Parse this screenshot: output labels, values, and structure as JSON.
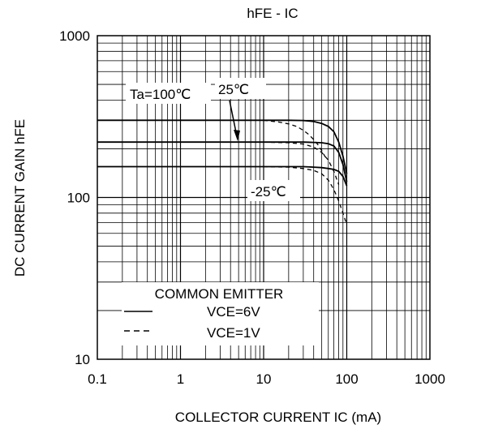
{
  "chart_data": {
    "type": "line",
    "title": "hFE - IC",
    "xlabel": "COLLECTOR CURRENT IC (mA)",
    "ylabel": "DC CURRENT GAIN  hFE",
    "x_scale": "log",
    "y_scale": "log",
    "xlim": [
      0.1,
      1000
    ],
    "ylim": [
      10,
      1000
    ],
    "x_ticks": [
      0.1,
      1,
      10,
      100,
      1000
    ],
    "x_tick_labels": [
      "0.1",
      "1",
      "10",
      "100",
      "1000"
    ],
    "y_ticks": [
      10,
      100,
      1000
    ],
    "y_tick_labels": [
      "10",
      "100",
      "1000"
    ],
    "grid": true,
    "legend": {
      "title": "COMMON EMITTER",
      "placement": "bottom-left",
      "entries": [
        {
          "label": "VCE=6V",
          "style": "solid"
        },
        {
          "label": "VCE=1V",
          "style": "dashed"
        }
      ]
    },
    "annotations": [
      "Ta=100℃",
      "25℃",
      "-25℃"
    ],
    "series": [
      {
        "temperature": "Ta=100℃",
        "vce": "6V",
        "style": "solid",
        "x": [
          0.1,
          1,
          10,
          20,
          30,
          40,
          50,
          60,
          70,
          80,
          90,
          100
        ],
        "y": [
          300,
          300,
          300,
          300,
          299,
          295,
          287,
          275,
          255,
          220,
          180,
          140
        ]
      },
      {
        "temperature": "25℃",
        "vce": "6V",
        "style": "solid",
        "x": [
          0.1,
          1,
          10,
          20,
          30,
          40,
          50,
          60,
          70,
          80,
          90,
          100
        ],
        "y": [
          220,
          220,
          220,
          220,
          220,
          219,
          218,
          215,
          208,
          190,
          160,
          125
        ]
      },
      {
        "temperature": "-25℃",
        "vce": "6V",
        "style": "solid",
        "x": [
          0.1,
          1,
          10,
          20,
          30,
          40,
          50,
          60,
          70,
          80,
          90,
          100
        ],
        "y": [
          155,
          155,
          155,
          155,
          155,
          154,
          153,
          151,
          149,
          145,
          135,
          118
        ]
      },
      {
        "temperature": "Ta=100℃",
        "vce": "1V",
        "style": "dashed",
        "x": [
          10,
          15,
          20,
          25,
          30,
          35,
          40,
          45,
          50,
          55
        ],
        "y": [
          300,
          293,
          285,
          275,
          260,
          245,
          228,
          212,
          195,
          178
        ]
      },
      {
        "temperature": "25℃",
        "vce": "1V",
        "style": "dashed",
        "x": [
          10,
          20,
          30,
          40,
          50,
          60,
          70,
          80
        ],
        "y": [
          220,
          218,
          214,
          205,
          190,
          170,
          145,
          120
        ]
      },
      {
        "temperature": "-25℃",
        "vce": "1V",
        "style": "dashed",
        "x": [
          10,
          20,
          30,
          40,
          50,
          60,
          70,
          80,
          90,
          100
        ],
        "y": [
          155,
          154,
          151,
          147,
          140,
          128,
          112,
          95,
          80,
          68
        ]
      }
    ]
  }
}
